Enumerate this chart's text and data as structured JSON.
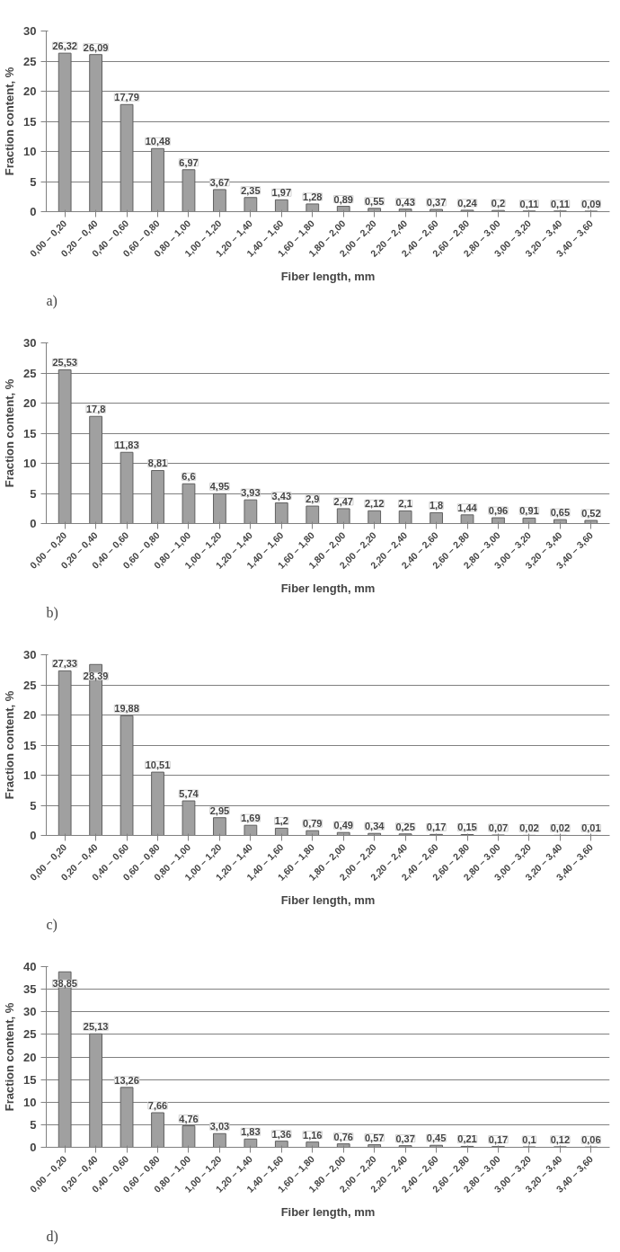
{
  "chart_data": [
    {
      "type": "bar",
      "xlabel": "Fiber length, mm",
      "ylabel": "Fraction content, %",
      "annotations": [
        "a)"
      ],
      "categories": [
        "0,00 – 0,20",
        "0,20 – 0,40",
        "0,40 – 0,60",
        "0,60 – 0,80",
        "0,80 – 1,00",
        "1,00 – 1,20",
        "1,20 – 1,40",
        "1,40 – 1,60",
        "1,60 – 1,80",
        "1,80 – 2,00",
        "2,00 – 2,20",
        "2,20 – 2,40",
        "2,40 – 2,60",
        "2,60 – 2,80",
        "2,80 – 3,00",
        "3,00 – 3,20",
        "3,20 – 3,40",
        "3,40 – 3,60"
      ],
      "values": [
        26.32,
        26.09,
        17.79,
        10.48,
        6.97,
        3.67,
        2.35,
        1.97,
        1.28,
        0.89,
        0.55,
        0.43,
        0.37,
        0.24,
        0.2,
        0.11,
        0.11,
        0.09
      ],
      "value_labels": [
        "26,32",
        "26,09",
        "17,79",
        "10,48",
        "6,97",
        "3,67",
        "2,35",
        "1,97",
        "1,28",
        "0,89",
        "0,55",
        "0,43",
        "0,37",
        "0,24",
        "0,2",
        "0,11",
        "0,11",
        "0,09"
      ],
      "color": "#a0a0a0",
      "ylim": [
        0,
        30
      ],
      "yticks": [
        0,
        5,
        10,
        15,
        20,
        25,
        30
      ],
      "grid": "y"
    },
    {
      "type": "bar",
      "xlabel": "Fiber length, mm",
      "ylabel": "Fraction content, %",
      "annotations": [
        "b)"
      ],
      "categories": [
        "0,00 – 0,20",
        "0,20 – 0,40",
        "0,40 – 0,60",
        "0,60 – 0,80",
        "0,80 – 1,00",
        "1,00 – 1,20",
        "1,20 – 1,40",
        "1,40 – 1,60",
        "1,60 – 1,80",
        "1,80 – 2,00",
        "2,00 – 2,20",
        "2,20 – 2,40",
        "2,40 – 2,60",
        "2,60 – 2,80",
        "2,80 – 3,00",
        "3,00 – 3,20",
        "3,20 – 3,40",
        "3,40 – 3,60"
      ],
      "values": [
        25.53,
        17.8,
        11.83,
        8.81,
        6.6,
        4.95,
        3.93,
        3.43,
        2.9,
        2.47,
        2.12,
        2.1,
        1.8,
        1.44,
        0.96,
        0.91,
        0.65,
        0.52
      ],
      "value_labels": [
        "25,53",
        "17,8",
        "11,83",
        "8,81",
        "6,6",
        "4,95",
        "3,93",
        "3,43",
        "2,9",
        "2,47",
        "2,12",
        "2,1",
        "1,8",
        "1,44",
        "0,96",
        "0,91",
        "0,65",
        "0,52"
      ],
      "color": "#a0a0a0",
      "ylim": [
        0,
        30
      ],
      "yticks": [
        0,
        5,
        10,
        15,
        20,
        25,
        30
      ],
      "grid": "y"
    },
    {
      "type": "bar",
      "xlabel": "Fiber length, mm",
      "ylabel": "Fraction content, %",
      "annotations": [
        "c)"
      ],
      "categories": [
        "0,00 – 0,20",
        "0,20 – 0,40",
        "0,40 – 0,60",
        "0,60 – 0,80",
        "0,80 – 1,00",
        "1,00 – 1,20",
        "1,20 – 1,40",
        "1,40 – 1,60",
        "1,60 – 1,80",
        "1,80 – 2,00",
        "2,00 – 2,20",
        "2,20 – 2,40",
        "2,40 – 2,60",
        "2,60 – 2,80",
        "2,80 – 3,00",
        "3,00 – 3,20",
        "3,20 – 3,40",
        "3,40 – 3,60"
      ],
      "values": [
        27.33,
        28.39,
        19.88,
        10.51,
        5.74,
        2.95,
        1.69,
        1.2,
        0.79,
        0.49,
        0.34,
        0.25,
        0.17,
        0.15,
        0.07,
        0.02,
        0.02,
        0.01
      ],
      "value_labels": [
        "27,33",
        "28,39",
        "19,88",
        "10,51",
        "5,74",
        "2,95",
        "1,69",
        "1,2",
        "0,79",
        "0,49",
        "0,34",
        "0,25",
        "0,17",
        "0,15",
        "0,07",
        "0,02",
        "0,02",
        "0,01"
      ],
      "color": "#a0a0a0",
      "ylim": [
        0,
        30
      ],
      "yticks": [
        0,
        5,
        10,
        15,
        20,
        25,
        30
      ],
      "grid": "y"
    },
    {
      "type": "bar",
      "xlabel": "Fiber length, mm",
      "ylabel": "Fraction content, %",
      "annotations": [
        "d)"
      ],
      "categories": [
        "0,00 – 0,20",
        "0,20 – 0,40",
        "0,40 – 0,60",
        "0,60 – 0,80",
        "0,80 – 1,00",
        "1,00 – 1,20",
        "1,20 – 1,40",
        "1,40 – 1,60",
        "1,60 – 1,80",
        "1,80 – 2,00",
        "2,00 – 2,20",
        "2,20 – 2,40",
        "2,40 – 2,60",
        "2,60 – 2,80",
        "2,80 – 3,00",
        "3,00 – 3,20",
        "3,20 – 3,40",
        "3,40 – 3,60"
      ],
      "values": [
        38.85,
        25.13,
        13.26,
        7.66,
        4.76,
        3.03,
        1.83,
        1.36,
        1.16,
        0.76,
        0.57,
        0.37,
        0.45,
        0.21,
        0.17,
        0.1,
        0.12,
        0.06
      ],
      "value_labels": [
        "38,85",
        "25,13",
        "13,26",
        "7,66",
        "4,76",
        "3,03",
        "1,83",
        "1,36",
        "1,16",
        "0,76",
        "0,57",
        "0,37",
        "0,45",
        "0,21",
        "0,17",
        "0,1",
        "0,12",
        "0,06"
      ],
      "color": "#a0a0a0",
      "ylim": [
        0,
        40
      ],
      "yticks": [
        0,
        5,
        10,
        15,
        20,
        25,
        30,
        35,
        40
      ],
      "grid": "y"
    }
  ]
}
